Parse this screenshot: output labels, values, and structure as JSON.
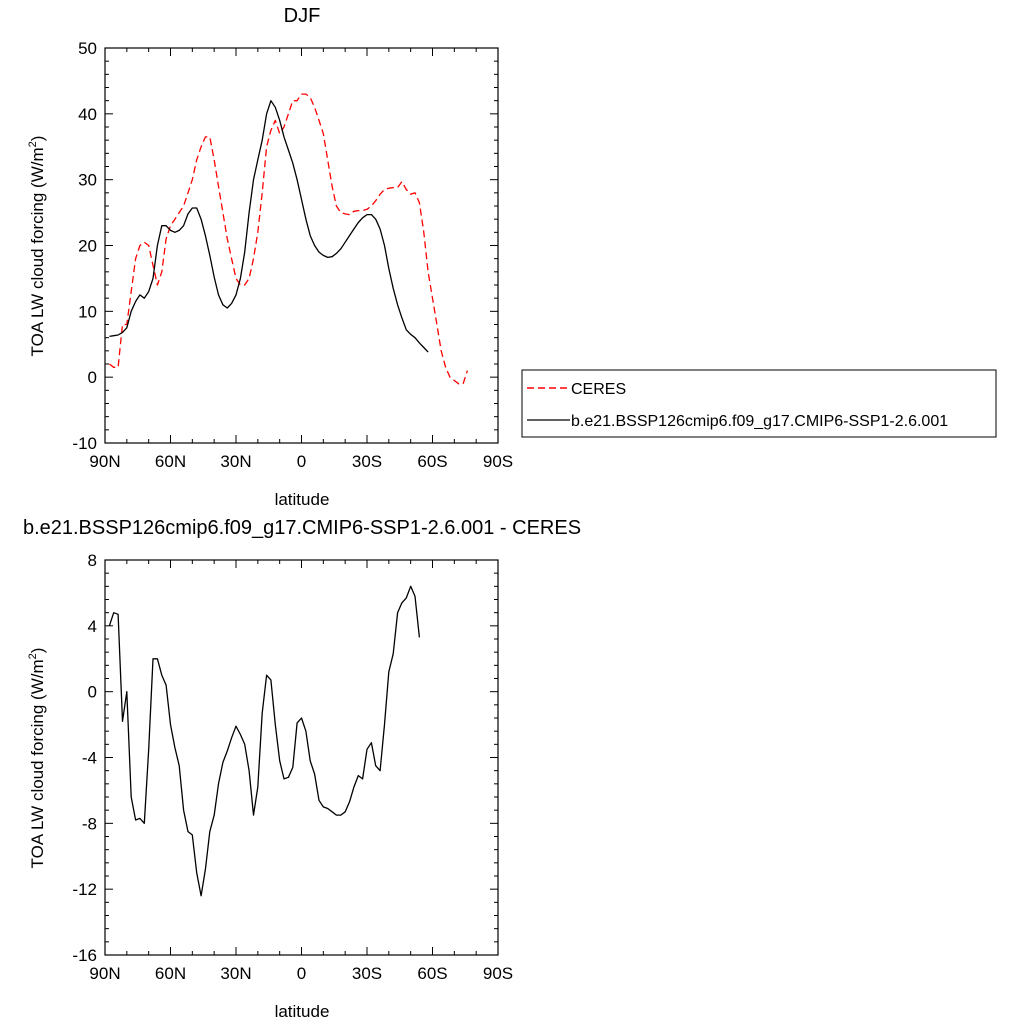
{
  "chart_data": [
    {
      "type": "line",
      "title": "DJF",
      "xlabel": "latitude",
      "ylabel": "TOA LW cloud forcing (W/m",
      "ylabel_sup": "2",
      "ylabel_end": ")",
      "xlim": [
        90,
        -90
      ],
      "ylim": [
        -10,
        50
      ],
      "x_ticks": [
        90,
        60,
        30,
        0,
        -30,
        -60,
        -90
      ],
      "x_tick_labels": [
        "90N",
        "60N",
        "30N",
        "0",
        "30S",
        "60S",
        "90S"
      ],
      "y_ticks": [
        -10,
        0,
        10,
        20,
        30,
        40,
        50
      ],
      "y_tick_labels": [
        "-10",
        "0",
        "10",
        "20",
        "30",
        "40",
        "50"
      ],
      "legend_position": "right",
      "series": [
        {
          "name": "CERES",
          "color": "#ff0000",
          "dash": "dashed",
          "points": [
            [
              88,
              2
            ],
            [
              86,
              1.5
            ],
            [
              84,
              1.5
            ],
            [
              82,
              8
            ],
            [
              80,
              8
            ],
            [
              78,
              13
            ],
            [
              76,
              18
            ],
            [
              74,
              20
            ],
            [
              72,
              20.5
            ],
            [
              70,
              20
            ],
            [
              68,
              17
            ],
            [
              66,
              14
            ],
            [
              64,
              16
            ],
            [
              62,
              21
            ],
            [
              60,
              23
            ],
            [
              58,
              24
            ],
            [
              56,
              25
            ],
            [
              54,
              26
            ],
            [
              52,
              28
            ],
            [
              50,
              30
            ],
            [
              48,
              33
            ],
            [
              46,
              35
            ],
            [
              44,
              36.5
            ],
            [
              42,
              36.5
            ],
            [
              40,
              33
            ],
            [
              38,
              29
            ],
            [
              36,
              25
            ],
            [
              34,
              21
            ],
            [
              32,
              18
            ],
            [
              30,
              15
            ],
            [
              28,
              14
            ],
            [
              26,
              14
            ],
            [
              24,
              15
            ],
            [
              22,
              18
            ],
            [
              20,
              22
            ],
            [
              18,
              28
            ],
            [
              16,
              35
            ],
            [
              14,
              37.5
            ],
            [
              12,
              39
            ],
            [
              10,
              37
            ],
            [
              8,
              38
            ],
            [
              6,
              40
            ],
            [
              4,
              42
            ],
            [
              2,
              42
            ],
            [
              0,
              43
            ],
            [
              -2,
              43
            ],
            [
              -4,
              42.5
            ],
            [
              -6,
              41
            ],
            [
              -8,
              39
            ],
            [
              -10,
              37
            ],
            [
              -12,
              33
            ],
            [
              -14,
              29
            ],
            [
              -16,
              26
            ],
            [
              -18,
              25
            ],
            [
              -20,
              24.8
            ],
            [
              -22,
              24.7
            ],
            [
              -24,
              25.2
            ],
            [
              -26,
              25.3
            ],
            [
              -28,
              25.3
            ],
            [
              -30,
              25.5
            ],
            [
              -32,
              26
            ],
            [
              -34,
              26.8
            ],
            [
              -36,
              27.8
            ],
            [
              -38,
              28.5
            ],
            [
              -40,
              28.7
            ],
            [
              -42,
              28.8
            ],
            [
              -44,
              28.8
            ],
            [
              -46,
              29.7
            ],
            [
              -48,
              28.5
            ],
            [
              -50,
              27.8
            ],
            [
              -52,
              28
            ],
            [
              -54,
              26.5
            ],
            [
              -56,
              22
            ],
            [
              -58,
              16
            ],
            [
              -60,
              12
            ],
            [
              -62,
              8
            ],
            [
              -64,
              4
            ],
            [
              -66,
              1.5
            ],
            [
              -68,
              0
            ],
            [
              -70,
              -0.5
            ],
            [
              -72,
              -1
            ],
            [
              -74,
              -1
            ],
            [
              -76,
              1
            ]
          ]
        },
        {
          "name": "b.e21.BSSP126cmip6.f09_g17.CMIP6-SSP1-2.6.001",
          "color": "#000000",
          "dash": "solid",
          "points": [
            [
              88,
              6.2
            ],
            [
              86,
              6.3
            ],
            [
              84,
              6.4
            ],
            [
              82,
              6.8
            ],
            [
              80,
              7.5
            ],
            [
              78,
              10
            ],
            [
              76,
              11.5
            ],
            [
              74,
              12.5
            ],
            [
              72,
              12
            ],
            [
              70,
              13
            ],
            [
              68,
              15
            ],
            [
              66,
              20
            ],
            [
              64,
              23
            ],
            [
              62,
              23
            ],
            [
              60,
              22.3
            ],
            [
              58,
              22
            ],
            [
              56,
              22.3
            ],
            [
              54,
              23
            ],
            [
              52,
              24.8
            ],
            [
              50,
              25.7
            ],
            [
              48,
              25.7
            ],
            [
              46,
              24
            ],
            [
              44,
              21.5
            ],
            [
              42,
              18.5
            ],
            [
              40,
              15.2
            ],
            [
              38,
              12.5
            ],
            [
              36,
              11
            ],
            [
              34,
              10.5
            ],
            [
              32,
              11.2
            ],
            [
              30,
              12.5
            ],
            [
              28,
              15
            ],
            [
              26,
              19
            ],
            [
              24,
              25
            ],
            [
              22,
              30
            ],
            [
              20,
              33
            ],
            [
              18,
              36
            ],
            [
              16,
              40
            ],
            [
              14,
              42
            ],
            [
              12,
              41
            ],
            [
              10,
              39
            ],
            [
              8,
              36.5
            ],
            [
              6,
              34.5
            ],
            [
              4,
              32.5
            ],
            [
              2,
              30
            ],
            [
              0,
              27
            ],
            [
              -2,
              24
            ],
            [
              -4,
              21.5
            ],
            [
              -6,
              20
            ],
            [
              -8,
              19
            ],
            [
              -10,
              18.5
            ],
            [
              -12,
              18.2
            ],
            [
              -14,
              18.3
            ],
            [
              -16,
              18.8
            ],
            [
              -18,
              19.5
            ],
            [
              -20,
              20.5
            ],
            [
              -22,
              21.5
            ],
            [
              -24,
              22.5
            ],
            [
              -26,
              23.5
            ],
            [
              -28,
              24.2
            ],
            [
              -30,
              24.7
            ],
            [
              -32,
              24.7
            ],
            [
              -34,
              24
            ],
            [
              -36,
              22.5
            ],
            [
              -38,
              20
            ],
            [
              -40,
              16.5
            ],
            [
              -42,
              13.5
            ],
            [
              -44,
              11
            ],
            [
              -46,
              9
            ],
            [
              -48,
              7.2
            ],
            [
              -50,
              6.5
            ],
            [
              -52,
              6
            ],
            [
              -54,
              5.2
            ],
            [
              -56,
              4.5
            ],
            [
              -58,
              3.8
            ]
          ]
        }
      ]
    },
    {
      "type": "line",
      "title": "b.e21.BSSP126cmip6.f09_g17.CMIP6-SSP1-2.6.001 - CERES",
      "xlabel": "latitude",
      "ylabel": "TOA LW cloud forcing (W/m",
      "ylabel_sup": "2",
      "ylabel_end": ")",
      "xlim": [
        90,
        -90
      ],
      "ylim": [
        -16,
        8
      ],
      "x_ticks": [
        90,
        60,
        30,
        0,
        -30,
        -60,
        -90
      ],
      "x_tick_labels": [
        "90N",
        "60N",
        "30N",
        "0",
        "30S",
        "60S",
        "90S"
      ],
      "y_ticks": [
        -16,
        -12,
        -8,
        -4,
        0,
        4,
        8
      ],
      "y_tick_labels": [
        "-16",
        "-12",
        "-8",
        "-4",
        "0",
        "4",
        "8"
      ],
      "series": [
        {
          "color": "#000000",
          "dash": "solid",
          "points": [
            [
              88,
              4
            ],
            [
              86,
              4.8
            ],
            [
              84,
              4.7
            ],
            [
              82,
              -1.8
            ],
            [
              80,
              0
            ],
            [
              78,
              -6.4
            ],
            [
              76,
              -7.8
            ],
            [
              74,
              -7.7
            ],
            [
              72,
              -8
            ],
            [
              70,
              -3.5
            ],
            [
              68,
              2
            ],
            [
              66,
              2
            ],
            [
              64,
              1
            ],
            [
              62,
              0.4
            ],
            [
              60,
              -2
            ],
            [
              58,
              -3.4
            ],
            [
              56,
              -4.5
            ],
            [
              54,
              -7.2
            ],
            [
              52,
              -8.5
            ],
            [
              50,
              -8.7
            ],
            [
              48,
              -11
            ],
            [
              46,
              -12.4
            ],
            [
              44,
              -10.8
            ],
            [
              42,
              -8.5
            ],
            [
              40,
              -7.5
            ],
            [
              38,
              -5.6
            ],
            [
              36,
              -4.3
            ],
            [
              34,
              -3.6
            ],
            [
              32,
              -2.8
            ],
            [
              30,
              -2.1
            ],
            [
              28,
              -2.6
            ],
            [
              26,
              -3.2
            ],
            [
              24,
              -4.8
            ],
            [
              22,
              -7.5
            ],
            [
              20,
              -5.8
            ],
            [
              18,
              -1.3
            ],
            [
              16,
              1
            ],
            [
              14,
              0.7
            ],
            [
              12,
              -2
            ],
            [
              10,
              -4.2
            ],
            [
              8,
              -5.3
            ],
            [
              6,
              -5.2
            ],
            [
              4,
              -4.6
            ],
            [
              2,
              -1.9
            ],
            [
              0,
              -1.6
            ],
            [
              -2,
              -2.4
            ],
            [
              -4,
              -4.2
            ],
            [
              -6,
              -5
            ],
            [
              -8,
              -6.6
            ],
            [
              -10,
              -7
            ],
            [
              -12,
              -7.1
            ],
            [
              -14,
              -7.3
            ],
            [
              -16,
              -7.5
            ],
            [
              -18,
              -7.5
            ],
            [
              -20,
              -7.3
            ],
            [
              -22,
              -6.7
            ],
            [
              -24,
              -5.8
            ],
            [
              -26,
              -5.1
            ],
            [
              -28,
              -5.3
            ],
            [
              -30,
              -3.5
            ],
            [
              -32,
              -3.1
            ],
            [
              -34,
              -4.5
            ],
            [
              -36,
              -4.8
            ],
            [
              -38,
              -2
            ],
            [
              -40,
              1.2
            ],
            [
              -42,
              2.3
            ],
            [
              -44,
              4.8
            ],
            [
              -46,
              5.4
            ],
            [
              -48,
              5.7
            ],
            [
              -50,
              6.4
            ],
            [
              -52,
              5.8
            ],
            [
              -54,
              3.3
            ]
          ]
        }
      ]
    }
  ]
}
